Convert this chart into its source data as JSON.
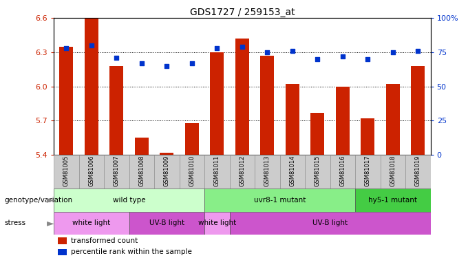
{
  "title": "GDS1727 / 259153_at",
  "samples": [
    "GSM81005",
    "GSM81006",
    "GSM81007",
    "GSM81008",
    "GSM81009",
    "GSM81010",
    "GSM81011",
    "GSM81012",
    "GSM81013",
    "GSM81014",
    "GSM81015",
    "GSM81016",
    "GSM81017",
    "GSM81018",
    "GSM81019"
  ],
  "bar_values": [
    6.35,
    6.6,
    6.18,
    5.55,
    5.42,
    5.68,
    6.3,
    6.42,
    6.27,
    6.02,
    5.77,
    6.0,
    5.72,
    6.02,
    6.18
  ],
  "dot_values": [
    78,
    80,
    71,
    67,
    65,
    67,
    78,
    79,
    75,
    76,
    70,
    72,
    70,
    75,
    76
  ],
  "ylim_left": [
    5.4,
    6.6
  ],
  "ylim_right": [
    0,
    100
  ],
  "yticks_left": [
    5.4,
    5.7,
    6.0,
    6.3,
    6.6
  ],
  "yticks_right": [
    0,
    25,
    50,
    75,
    100
  ],
  "ytick_labels_right": [
    "0",
    "25",
    "50",
    "75",
    "100%"
  ],
  "bar_color": "#cc2200",
  "dot_color": "#0033cc",
  "genotype_data": [
    {
      "label": "wild type",
      "start": 0,
      "end": 6,
      "color": "#ccffcc"
    },
    {
      "label": "uvr8-1 mutant",
      "start": 6,
      "end": 12,
      "color": "#88ee88"
    },
    {
      "label": "hy5-1 mutant",
      "start": 12,
      "end": 15,
      "color": "#44cc44"
    }
  ],
  "stress_data": [
    {
      "label": "white light",
      "start": 0,
      "end": 3,
      "color": "#ee99ee"
    },
    {
      "label": "UV-B light",
      "start": 3,
      "end": 6,
      "color": "#cc55cc"
    },
    {
      "label": "white light",
      "start": 6,
      "end": 7,
      "color": "#ee99ee"
    },
    {
      "label": "UV-B light",
      "start": 7,
      "end": 15,
      "color": "#cc55cc"
    }
  ],
  "sample_bg_color": "#cccccc",
  "legend_items": [
    "transformed count",
    "percentile rank within the sample"
  ],
  "bar_width": 0.55
}
